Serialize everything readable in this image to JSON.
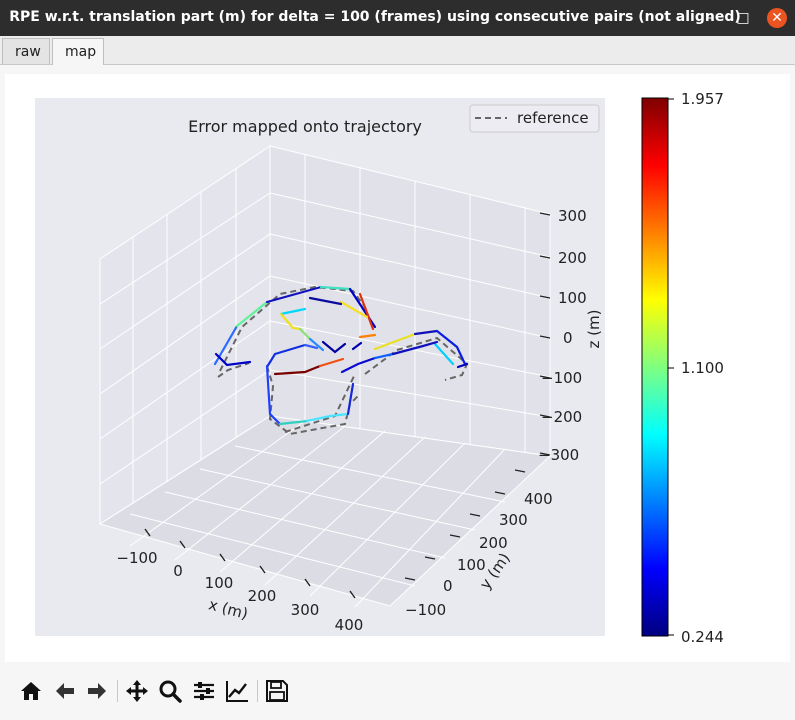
{
  "window": {
    "title": "RPE w.r.t. translation part (m) for delta = 100 (frames) using consecutive pairs (not aligned)",
    "min_glyph": "–",
    "max_glyph": "□",
    "close_glyph": "✕"
  },
  "tabs": [
    {
      "label": "raw",
      "selected": false
    },
    {
      "label": "map",
      "selected": true
    }
  ],
  "plot": {
    "title": "Error mapped onto trajectory",
    "legend": "reference",
    "x_label": "x (m)",
    "y_label": "y (m)",
    "z_label": "z (m)",
    "x_ticks": [
      "−100",
      "0",
      "100",
      "200",
      "300",
      "400"
    ],
    "y_ticks": [
      "−100",
      "0",
      "100",
      "200",
      "300",
      "400"
    ],
    "z_ticks": [
      "300",
      "200",
      "100",
      "0",
      "−100",
      "−200",
      "−300"
    ],
    "colorbar": {
      "max": "1.957",
      "mid": "1.100",
      "min": "0.244",
      "colormap": "jet"
    },
    "pane_color": "#e9e9f0",
    "reference_color": "#666666"
  },
  "toolbar": {
    "icons": [
      "home-icon",
      "back-icon",
      "forward-icon",
      "pan-icon",
      "zoom-icon",
      "configure-icon",
      "edit-axes-icon",
      "save-icon"
    ]
  }
}
